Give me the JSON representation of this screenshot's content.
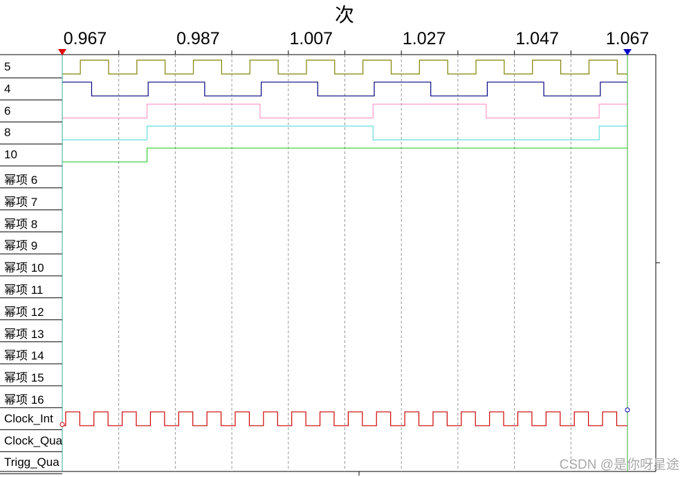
{
  "title": "次",
  "axis": {
    "ticks": [
      "0.967",
      "0.987",
      "1.007",
      "1.027",
      "1.047",
      "1.067"
    ],
    "cursor_left_color": "#e00000",
    "cursor_right_color": "#0000cc"
  },
  "signals": [
    {
      "name": "5",
      "color": "#808000",
      "waveform": "clock",
      "period": 0.01
    },
    {
      "name": "4",
      "color": "#000080",
      "waveform": "clock",
      "period": 0.02
    },
    {
      "name": "6",
      "color": "#ff99cc",
      "waveform": "clock",
      "period": 0.04
    },
    {
      "name": "8",
      "color": "#66dddd",
      "waveform": "clock",
      "period": 0.08
    },
    {
      "name": "10",
      "color": "#33cc33",
      "waveform": "step"
    },
    {
      "name": "幂项 6"
    },
    {
      "name": "幂项 7"
    },
    {
      "name": "幂项 8"
    },
    {
      "name": "幂项 9"
    },
    {
      "name": "幂项 10"
    },
    {
      "name": "幂项 11"
    },
    {
      "name": "幂项 12"
    },
    {
      "name": "幂项 13"
    },
    {
      "name": "幂项 14"
    },
    {
      "name": "幂项 15"
    },
    {
      "name": "幂项 16"
    },
    {
      "name": "Clock_Int",
      "color": "#cc0000",
      "waveform": "clock",
      "period": 0.005
    },
    {
      "name": "Clock_Qua"
    },
    {
      "name": "Trigg_Qua"
    }
  ],
  "watermark": "CSDN @是你呀星途"
}
